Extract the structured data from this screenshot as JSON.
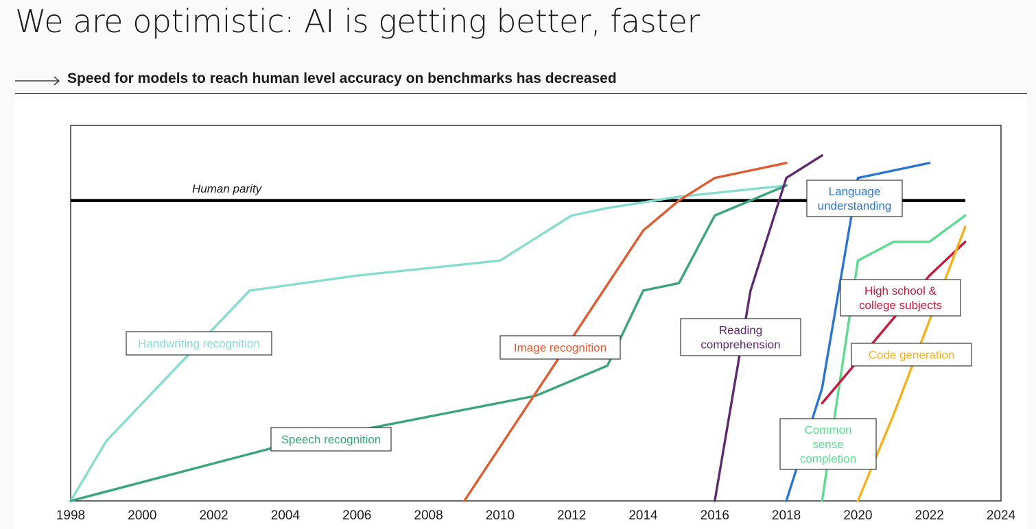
{
  "header": {
    "title": "We are optimistic: AI is getting better, faster",
    "subtitle": "Speed for models to reach human level accuracy on benchmarks has decreased"
  },
  "chart_data": {
    "type": "line",
    "title": "",
    "xlabel": "",
    "ylabel": "",
    "xlim": [
      1998,
      2024
    ],
    "ylim": [
      0,
      100
    ],
    "x_ticks": [
      "1998",
      "2000",
      "2002",
      "2004",
      "2006",
      "2008",
      "2010",
      "2012",
      "2014",
      "2016",
      "2018",
      "2020",
      "2022",
      "2024"
    ],
    "grid": false,
    "reference_lines": [
      {
        "label": "Human parity",
        "y": 80,
        "x_start": 1998,
        "x_end": 2023,
        "color": "#000000"
      }
    ],
    "series": [
      {
        "name": "Handwriting recognition",
        "color": "#86dccf",
        "points": [
          [
            1998,
            0
          ],
          [
            1999,
            16
          ],
          [
            2003,
            56
          ],
          [
            2006,
            60
          ],
          [
            2010,
            64
          ],
          [
            2012,
            76
          ],
          [
            2013,
            78
          ],
          [
            2015,
            81
          ],
          [
            2018,
            84
          ]
        ]
      },
      {
        "name": "Speech recognition",
        "color": "#3aa57a",
        "points": [
          [
            1998,
            0
          ],
          [
            2004,
            15
          ],
          [
            2011,
            28
          ],
          [
            2013,
            36
          ],
          [
            2014,
            56
          ],
          [
            2015,
            58
          ],
          [
            2016,
            76
          ],
          [
            2018,
            84
          ]
        ]
      },
      {
        "name": "Image recognition",
        "color": "#e05b30",
        "points": [
          [
            2009,
            0
          ],
          [
            2014,
            72
          ],
          [
            2015,
            80
          ],
          [
            2016,
            86
          ],
          [
            2018,
            90
          ]
        ]
      },
      {
        "name": "Reading comprehension",
        "color": "#5e2a6e",
        "points": [
          [
            2016,
            0
          ],
          [
            2017,
            56
          ],
          [
            2018,
            86
          ],
          [
            2019,
            92
          ]
        ]
      },
      {
        "name": "Language understanding",
        "color": "#2a74d4",
        "points": [
          [
            2018,
            0
          ],
          [
            2019,
            30
          ],
          [
            2020,
            86
          ],
          [
            2022,
            90
          ]
        ]
      },
      {
        "name": "Common sense completion",
        "color": "#5ddc8f",
        "points": [
          [
            2019,
            0
          ],
          [
            2020,
            64
          ],
          [
            2021,
            69
          ],
          [
            2022,
            69
          ],
          [
            2023,
            76
          ]
        ]
      },
      {
        "name": "High school & college subjects",
        "color": "#c8183a",
        "points": [
          [
            2019,
            26
          ],
          [
            2022,
            60
          ],
          [
            2023,
            69
          ]
        ]
      },
      {
        "name": "Code generation",
        "color": "#f5b11d",
        "points": [
          [
            2020,
            0
          ],
          [
            2021,
            23
          ],
          [
            2023,
            73
          ]
        ]
      }
    ],
    "annotations": [
      {
        "text": "Human parity",
        "series": "reference"
      },
      {
        "lines": [
          "Handwriting recognition"
        ],
        "series": "Handwriting recognition"
      },
      {
        "lines": [
          "Speech recognition"
        ],
        "series": "Speech recognition"
      },
      {
        "lines": [
          "Image recognition"
        ],
        "series": "Image recognition"
      },
      {
        "lines": [
          "Reading",
          "comprehension"
        ],
        "series": "Reading comprehension"
      },
      {
        "lines": [
          "Language",
          "understanding"
        ],
        "series": "Language understanding"
      },
      {
        "lines": [
          "High school &",
          "college subjects"
        ],
        "series": "High school & college subjects"
      },
      {
        "lines": [
          "Code generation"
        ],
        "series": "Code generation"
      },
      {
        "lines": [
          "Common",
          "sense",
          "completion"
        ],
        "series": "Common sense completion"
      }
    ]
  }
}
